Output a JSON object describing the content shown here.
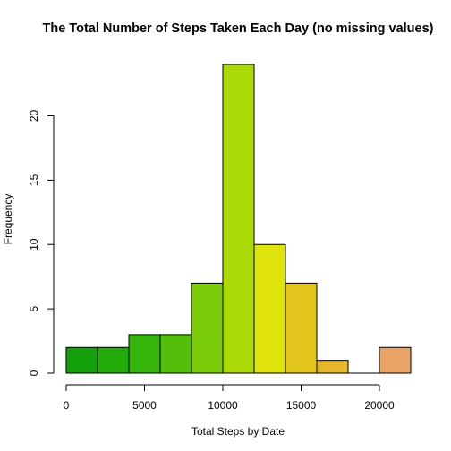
{
  "chart_data": {
    "type": "bar",
    "title": "The Total Number of Steps Taken Each Day (no missing values)",
    "xlabel": "Total Steps by Date",
    "ylabel": "Frequency",
    "xlim": [
      0,
      22000
    ],
    "ylim": [
      0,
      24
    ],
    "x_ticks": [
      0,
      5000,
      10000,
      15000,
      20000
    ],
    "x_tick_labels": [
      "0",
      "5000",
      "10000",
      "15000",
      "20000"
    ],
    "y_ticks": [
      0,
      5,
      10,
      15,
      20
    ],
    "y_tick_labels": [
      "0",
      "5",
      "10",
      "15",
      "20"
    ],
    "grid": false,
    "bins": [
      {
        "x0": 0,
        "x1": 2000,
        "count": 2,
        "color": "#14A10B"
      },
      {
        "x0": 2000,
        "x1": 4000,
        "count": 2,
        "color": "#23AA0B"
      },
      {
        "x0": 4000,
        "x1": 6000,
        "count": 3,
        "color": "#35B40B"
      },
      {
        "x0": 6000,
        "x1": 8000,
        "count": 3,
        "color": "#53BF0B"
      },
      {
        "x0": 8000,
        "x1": 10000,
        "count": 7,
        "color": "#7ACC08"
      },
      {
        "x0": 10000,
        "x1": 12000,
        "count": 24,
        "color": "#ACD908"
      },
      {
        "x0": 12000,
        "x1": 14000,
        "count": 10,
        "color": "#DFE20B"
      },
      {
        "x0": 14000,
        "x1": 16000,
        "count": 7,
        "color": "#E1C51C"
      },
      {
        "x0": 16000,
        "x1": 18000,
        "count": 1,
        "color": "#E6B72C"
      },
      {
        "x0": 18000,
        "x1": 20000,
        "count": 0,
        "color": "#E8B54A"
      },
      {
        "x0": 20000,
        "x1": 22000,
        "count": 2,
        "color": "#E9A466"
      }
    ]
  }
}
